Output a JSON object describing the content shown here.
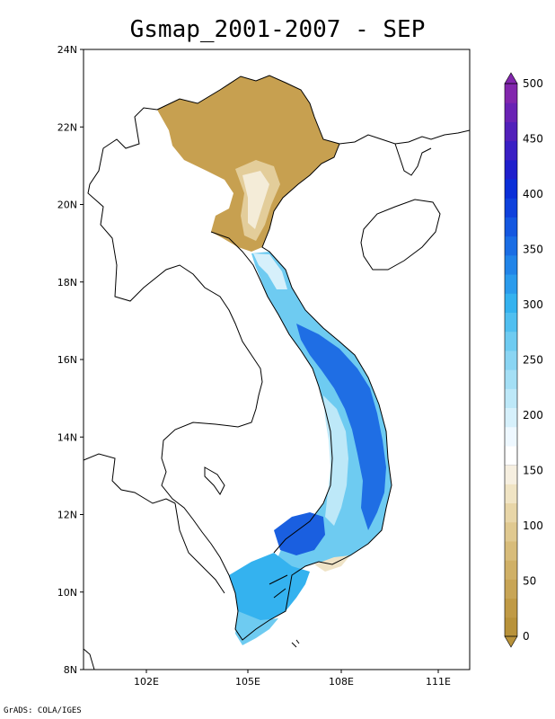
{
  "title": "Gsmap_2001-2007 - SEP",
  "footer": "GrADS: COLA/IGES",
  "map": {
    "lat_labels": [
      "24N",
      "22N",
      "20N",
      "18N",
      "16N",
      "14N",
      "12N",
      "10N",
      "8N"
    ],
    "lon_labels": [
      "102E",
      "105E",
      "108E",
      "111E"
    ],
    "lat_range": [
      8,
      24
    ],
    "lon_range": [
      99.2,
      111.3
    ]
  },
  "colorbar": {
    "tick_labels": [
      "500",
      "450",
      "400",
      "350",
      "300",
      "250",
      "200",
      "150",
      "100",
      "50",
      "0"
    ],
    "min": 0,
    "max": 500,
    "step": 20,
    "colors": [
      "#b8923a",
      "#c09a45",
      "#c8a555",
      "#d0b066",
      "#d8bc7a",
      "#e0c990",
      "#e8d6a8",
      "#f0e4c4",
      "#f6efe0",
      "#ffffff",
      "#eef8ff",
      "#d6f0fb",
      "#bde8f8",
      "#a4dff5",
      "#8ad5f3",
      "#6ecbf1",
      "#50bff0",
      "#34b2ef",
      "#2a9bec",
      "#2184e8",
      "#1a6de4",
      "#1457e0",
      "#0f41dc",
      "#0b2fd8",
      "#1f1fcc",
      "#3a1fc4",
      "#5220ba",
      "#6a22b4",
      "#8226ad"
    ]
  }
}
